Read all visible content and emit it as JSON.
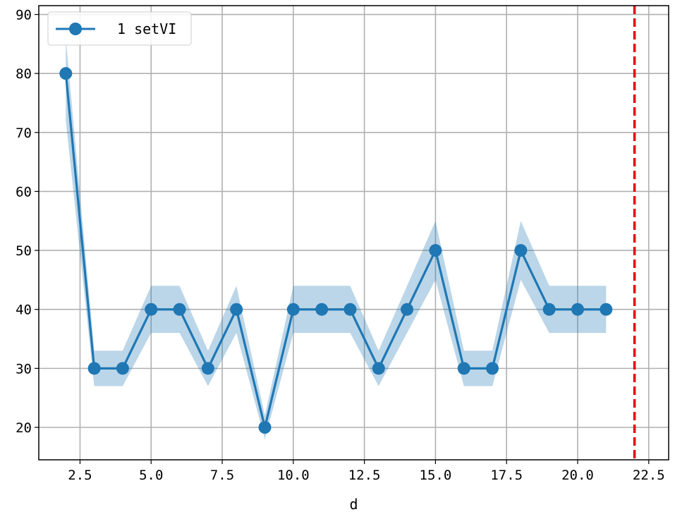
{
  "chart_data": {
    "type": "line",
    "title": "",
    "xlabel": "d",
    "ylabel": "",
    "xlim": [
      1.05,
      23.2
    ],
    "ylim": [
      14.5,
      91.5
    ],
    "xticks": [
      2.5,
      5.0,
      7.5,
      10.0,
      12.5,
      15.0,
      17.5,
      20.0,
      22.5
    ],
    "xtick_labels": [
      "2.5",
      "5.0",
      "7.5",
      "10.0",
      "12.5",
      "15.0",
      "17.5",
      "20.0",
      "22.5"
    ],
    "yticks": [
      20,
      30,
      40,
      50,
      60,
      70,
      80,
      90
    ],
    "ytick_labels": [
      "20",
      "30",
      "40",
      "50",
      "60",
      "70",
      "80",
      "90"
    ],
    "grid": true,
    "legend_position": "top-left",
    "series": [
      {
        "name": "1 setVI",
        "color": "#1f77b4",
        "marker": "circle",
        "x": [
          2,
          3,
          4,
          5,
          6,
          7,
          8,
          9,
          10,
          11,
          12,
          13,
          14,
          15,
          16,
          17,
          18,
          19,
          20,
          21
        ],
        "y": [
          80,
          30,
          30,
          40,
          40,
          30,
          40,
          20,
          40,
          40,
          40,
          30,
          40,
          50,
          30,
          30,
          50,
          40,
          40,
          40
        ],
        "band_lower": [
          72,
          27,
          27,
          36,
          36,
          27,
          36,
          18,
          36,
          36,
          36,
          27,
          36,
          45,
          27,
          27,
          45,
          36,
          36,
          36
        ],
        "band_upper": [
          86,
          33,
          33,
          44,
          44,
          33,
          44,
          22,
          44,
          44,
          44,
          33,
          44,
          55,
          33,
          33,
          55,
          44,
          44,
          44
        ],
        "band_color": "#1f77b4"
      }
    ],
    "reference_lines": [
      {
        "axis": "x",
        "value": 22,
        "style": "dashed",
        "color": "#e8000b"
      }
    ]
  }
}
